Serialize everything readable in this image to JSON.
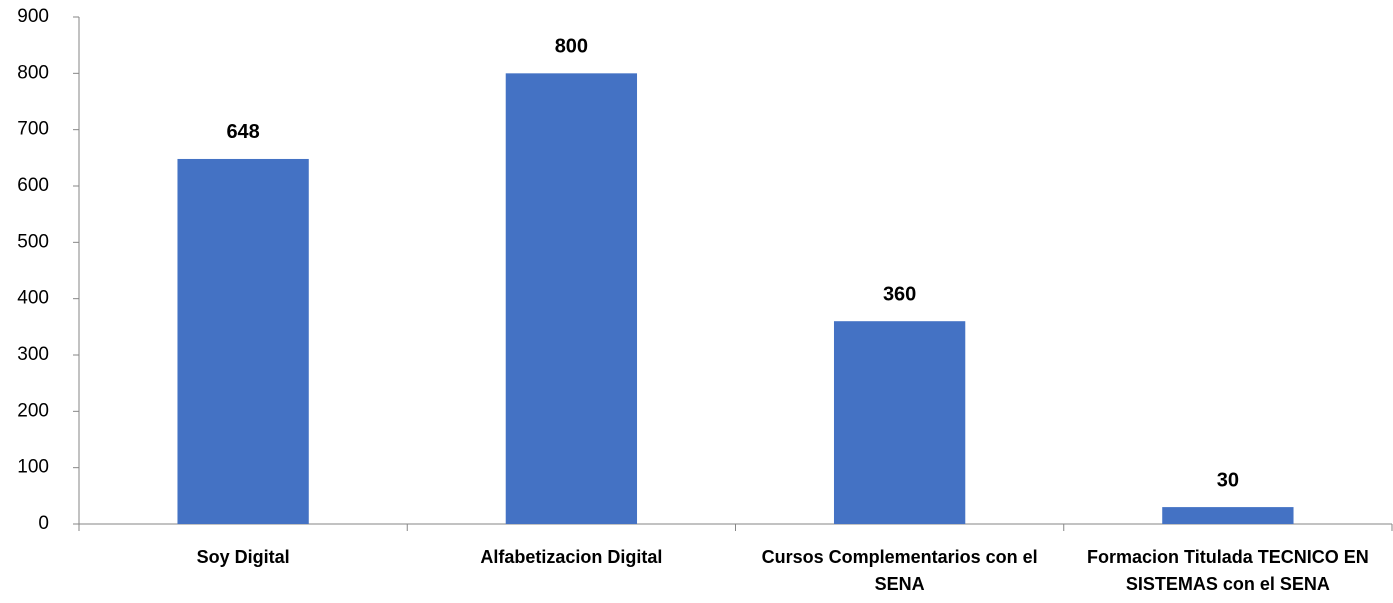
{
  "chart_data": {
    "type": "bar",
    "categories": [
      "Soy Digital",
      "Alfabetizacion Digital",
      "Cursos Complementarios con el SENA",
      "Formacion Titulada TECNICO EN SISTEMAS con el SENA"
    ],
    "values": [
      648,
      800,
      360,
      30
    ],
    "color": "#4472c4",
    "ylim": [
      0,
      900
    ],
    "yticks": [
      0,
      100,
      200,
      300,
      400,
      500,
      600,
      700,
      800,
      900
    ],
    "grid": false
  }
}
